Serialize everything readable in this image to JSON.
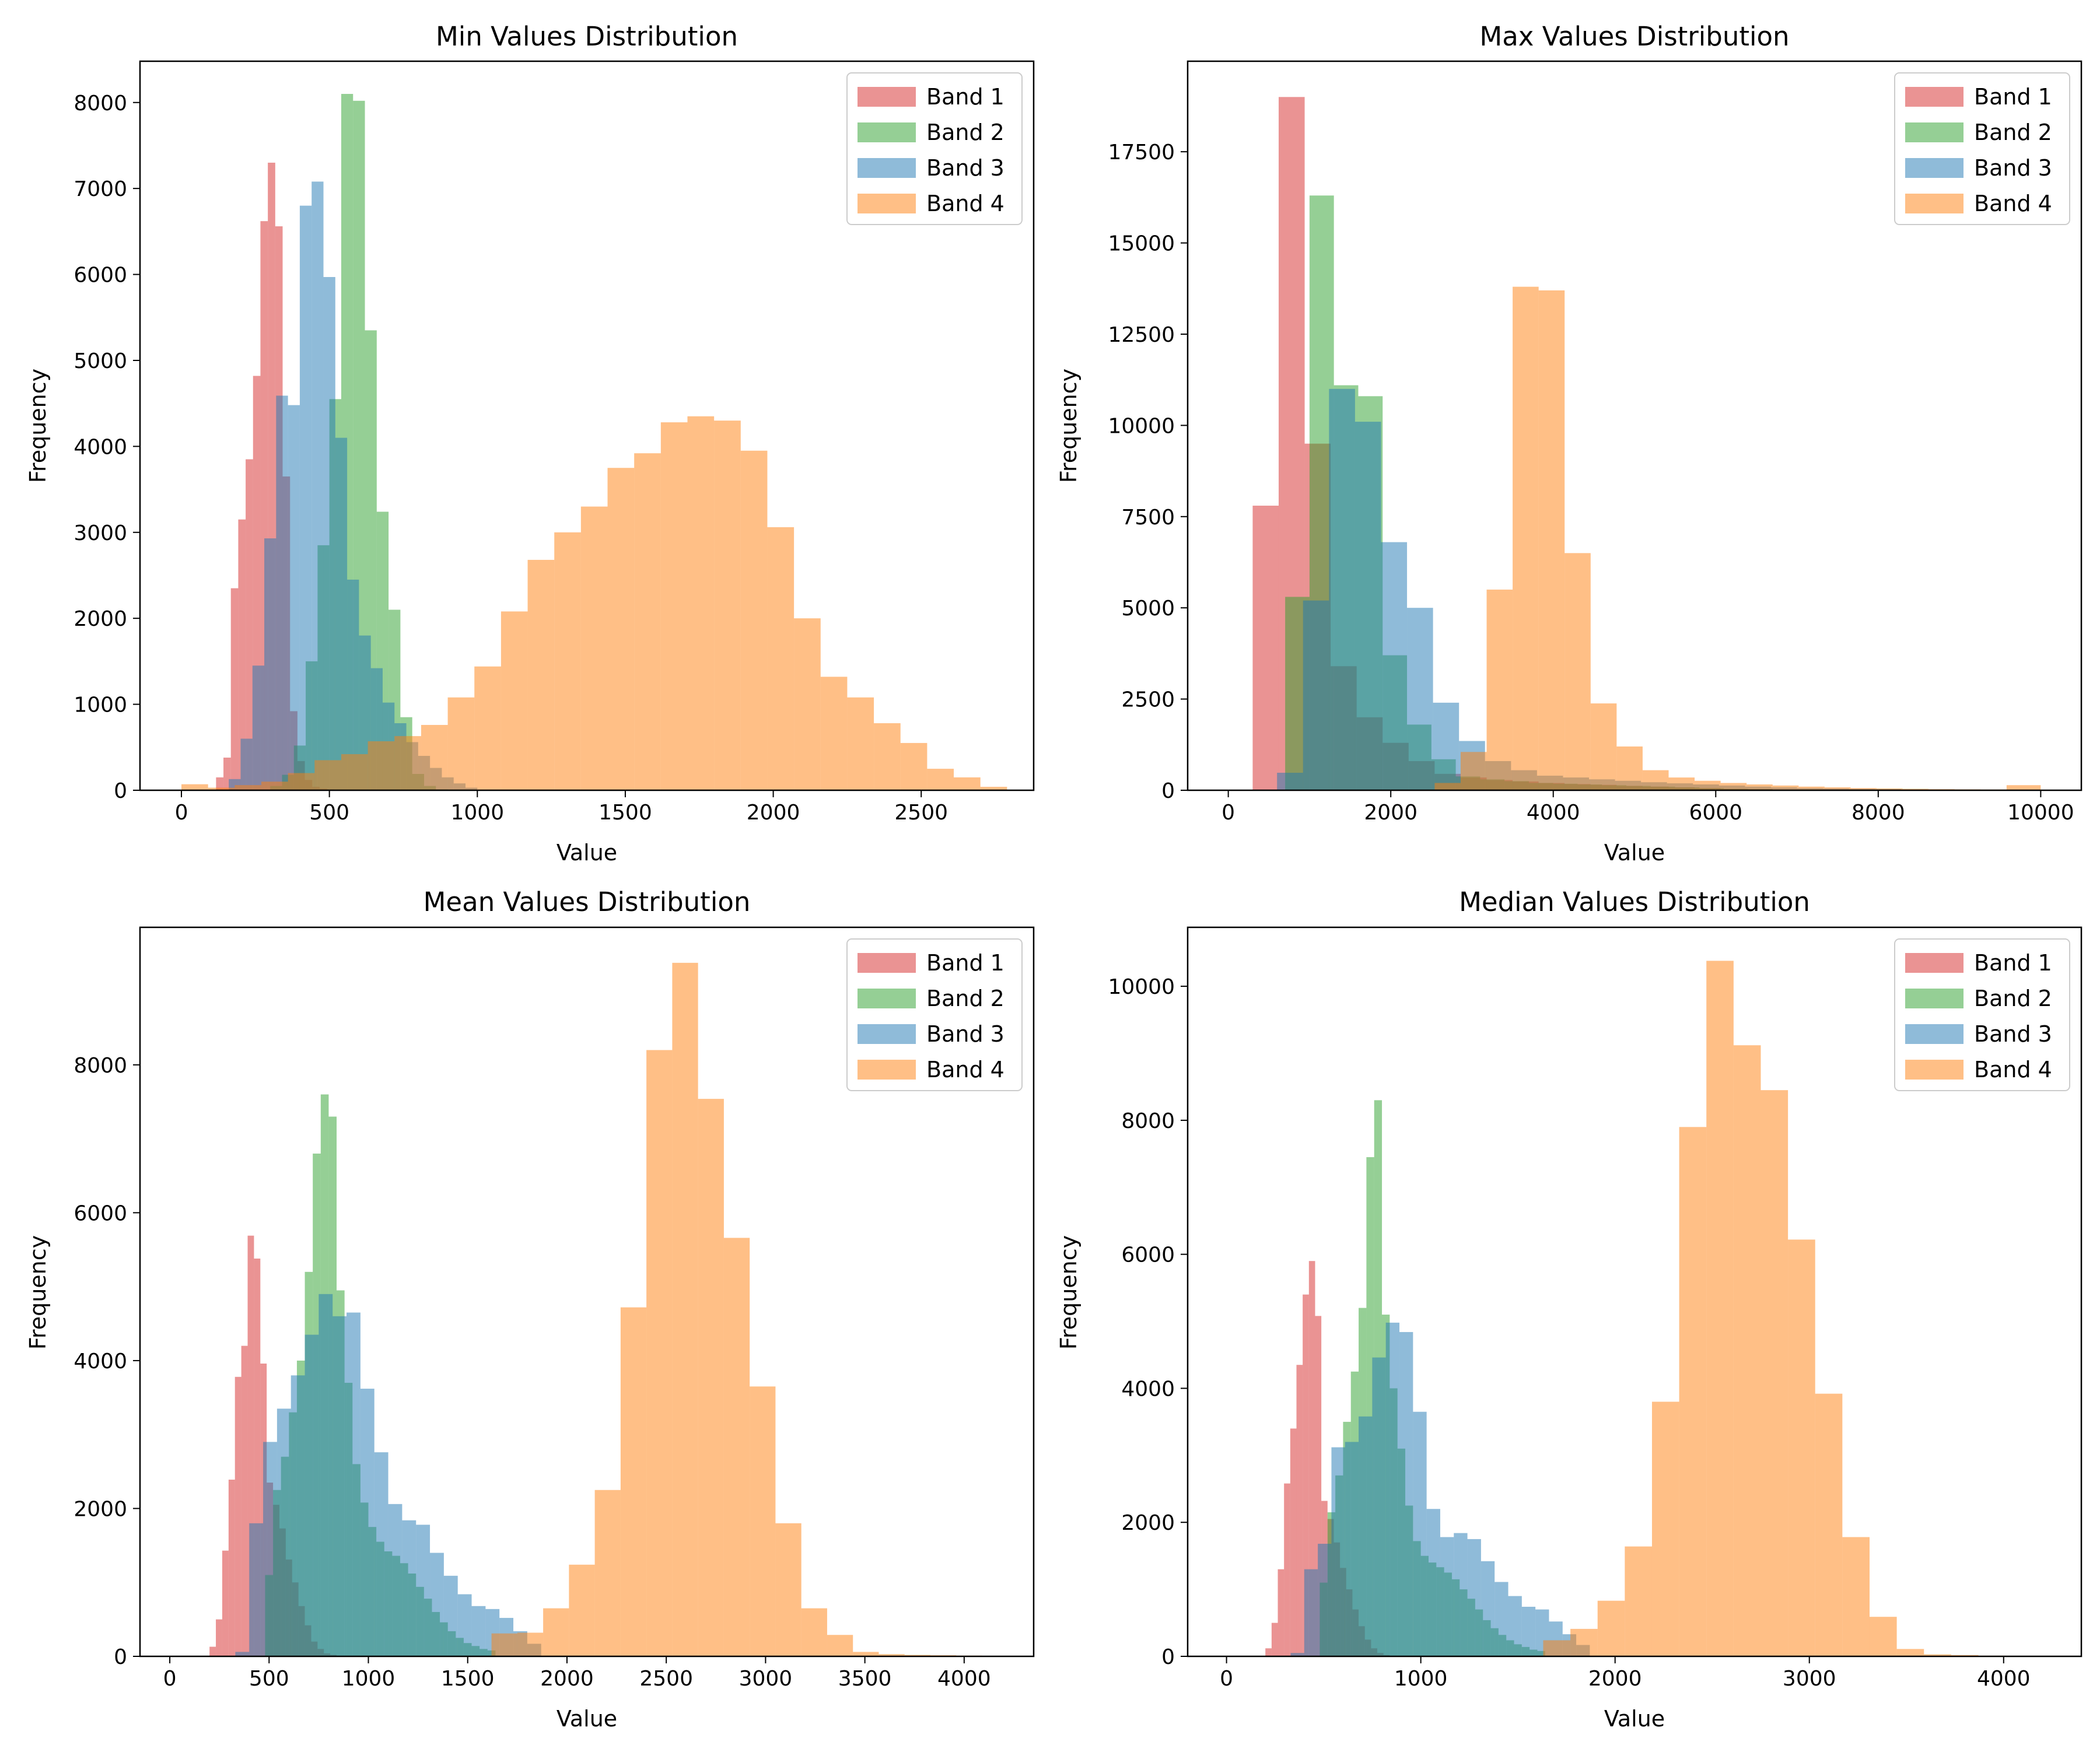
{
  "colors": {
    "band_1": "#d62728",
    "band_2": "#2ca02c",
    "band_3": "#1f77b4",
    "band_4": "#ff7f0e"
  },
  "chart_data": [
    {
      "type": "histogram",
      "title": "Min Values Distribution",
      "xlabel": "Value",
      "ylabel": "Frequency",
      "xlim": [
        -140,
        2880
      ],
      "ylim": [
        0,
        8480
      ],
      "xticks": [
        0,
        500,
        1000,
        1500,
        2000,
        2500
      ],
      "yticks": [
        0,
        1000,
        2000,
        3000,
        4000,
        5000,
        6000,
        7000,
        8000
      ],
      "legend": "top-right",
      "series": [
        {
          "name": "Band 1",
          "color_key": "band_1",
          "edges": [
            117,
            142,
            167,
            192,
            217,
            242,
            267,
            292,
            317,
            342,
            367,
            392,
            417,
            442,
            467,
            492,
            517
          ],
          "values": [
            150,
            380,
            2350,
            3150,
            3850,
            4820,
            6620,
            7300,
            6560,
            3650,
            920,
            340,
            120,
            40,
            20,
            10
          ]
        },
        {
          "name": "Band 2",
          "color_key": "band_2",
          "edges": [
            300,
            340,
            380,
            420,
            460,
            500,
            540,
            580,
            620,
            660,
            700,
            740,
            780,
            820,
            860,
            900
          ],
          "values": [
            50,
            180,
            520,
            1500,
            2850,
            4550,
            8100,
            8020,
            5350,
            3240,
            2100,
            850,
            190,
            50,
            10
          ]
        },
        {
          "name": "Band 3",
          "color_key": "band_3",
          "edges": [
            160,
            200,
            240,
            280,
            320,
            360,
            400,
            440,
            480,
            520,
            560,
            600,
            640,
            680,
            720,
            760,
            800,
            840,
            880,
            920,
            960,
            1000
          ],
          "values": [
            130,
            600,
            1450,
            2930,
            4590,
            4480,
            6800,
            7080,
            5970,
            4100,
            2450,
            1800,
            1420,
            1020,
            780,
            560,
            400,
            260,
            150,
            80,
            30
          ]
        },
        {
          "name": "Band 4",
          "color_key": "band_4",
          "edges": [
            0,
            90,
            180,
            270,
            360,
            450,
            540,
            630,
            720,
            810,
            900,
            990,
            1080,
            1170,
            1260,
            1350,
            1440,
            1530,
            1620,
            1710,
            1800,
            1890,
            1980,
            2070,
            2160,
            2250,
            2340,
            2430,
            2520,
            2610,
            2700,
            2790
          ],
          "values": [
            70,
            30,
            60,
            100,
            200,
            350,
            420,
            570,
            630,
            760,
            1080,
            1440,
            2080,
            2680,
            3000,
            3300,
            3750,
            3920,
            4280,
            4350,
            4300,
            3950,
            3060,
            2000,
            1320,
            1080,
            780,
            550,
            250,
            150,
            40
          ]
        }
      ]
    },
    {
      "type": "histogram",
      "title": "Max Values Distribution",
      "xlabel": "Value",
      "ylabel": "Frequency",
      "xlim": [
        -500,
        10500
      ],
      "ylim": [
        0,
        19980
      ],
      "xticks": [
        0,
        2000,
        4000,
        6000,
        8000,
        10000
      ],
      "yticks": [
        0,
        2500,
        5000,
        7500,
        10000,
        12500,
        15000,
        17500
      ],
      "legend": "top-right",
      "series": [
        {
          "name": "Band 1",
          "color_key": "band_1",
          "edges": [
            300,
            620,
            940,
            1260,
            1580,
            1900,
            2220,
            2540,
            2860,
            3180,
            3500,
            3820,
            4140,
            4460,
            4780,
            5100,
            5420,
            5740,
            6060,
            6380,
            6700
          ],
          "values": [
            7800,
            19000,
            9500,
            3400,
            2000,
            1300,
            800,
            450,
            350,
            280,
            240,
            200,
            170,
            150,
            120,
            100,
            80,
            60,
            40,
            30
          ]
        },
        {
          "name": "Band 2",
          "color_key": "band_2",
          "edges": [
            700,
            1000,
            1300,
            1600,
            1900,
            2200,
            2500,
            2800,
            3100,
            3400,
            3700,
            4000,
            4300,
            4600,
            4900,
            5200,
            5500,
            5800,
            6100,
            6400,
            6700
          ],
          "values": [
            5300,
            16300,
            11100,
            10800,
            3700,
            1800,
            850,
            380,
            300,
            250,
            200,
            180,
            160,
            140,
            120,
            100,
            80,
            60,
            40,
            30
          ]
        },
        {
          "name": "Band 3",
          "color_key": "band_3",
          "edges": [
            600,
            920,
            1240,
            1560,
            1880,
            2200,
            2520,
            2840,
            3160,
            3480,
            3800,
            4120,
            4440,
            4760,
            5080,
            5400,
            5720,
            6040,
            6360,
            6680,
            7000,
            7320,
            7640,
            7960,
            8280,
            8600,
            8920,
            9240
          ],
          "values": [
            480,
            5200,
            11000,
            10100,
            6800,
            5000,
            2400,
            1350,
            800,
            550,
            400,
            350,
            300,
            260,
            220,
            190,
            160,
            130,
            100,
            80,
            60,
            50,
            40,
            30,
            20,
            15,
            10
          ]
        },
        {
          "name": "Band 4",
          "color_key": "band_4",
          "edges": [
            2540,
            2860,
            3180,
            3500,
            3820,
            4140,
            4460,
            4780,
            5100,
            5420,
            5740,
            6060,
            6380,
            6700,
            7020,
            7340,
            7660,
            7980,
            8300,
            8620,
            8940,
            9260,
            9580,
            10000
          ],
          "values": [
            200,
            1050,
            5500,
            13800,
            13700,
            6500,
            2380,
            1200,
            550,
            350,
            260,
            200,
            160,
            130,
            100,
            80,
            60,
            50,
            40,
            30,
            25,
            20,
            140
          ]
        }
      ]
    },
    {
      "type": "histogram",
      "title": "Mean Values Distribution",
      "xlabel": "Value",
      "ylabel": "Frequency",
      "xlim": [
        -150,
        4350
      ],
      "ylim": [
        0,
        9860
      ],
      "xticks": [
        0,
        500,
        1000,
        1500,
        2000,
        2500,
        3000,
        3500,
        4000
      ],
      "yticks": [
        0,
        2000,
        4000,
        6000,
        8000
      ],
      "legend": "top-right",
      "series": [
        {
          "name": "Band 1",
          "color_key": "band_1",
          "edges": [
            200,
            232,
            264,
            296,
            328,
            360,
            392,
            424,
            456,
            488,
            520,
            552,
            584,
            616,
            648,
            680,
            712,
            744,
            776,
            808,
            840
          ],
          "values": [
            130,
            500,
            1430,
            2390,
            3780,
            4200,
            5690,
            5380,
            3960,
            2350,
            2050,
            1730,
            1310,
            1000,
            680,
            420,
            200,
            100,
            40,
            20
          ]
        },
        {
          "name": "Band 2",
          "color_key": "band_2",
          "edges": [
            480,
            520,
            560,
            600,
            640,
            680,
            720,
            760,
            800,
            840,
            880,
            920,
            960,
            1000,
            1040,
            1080,
            1120,
            1160,
            1200,
            1240,
            1280,
            1320,
            1360,
            1400,
            1440,
            1480,
            1520,
            1560,
            1600,
            1640
          ],
          "values": [
            1100,
            2250,
            2700,
            3300,
            4000,
            5200,
            6800,
            7600,
            7300,
            4950,
            3700,
            2600,
            2080,
            1750,
            1550,
            1420,
            1360,
            1260,
            1120,
            940,
            780,
            600,
            460,
            340,
            250,
            180,
            140,
            100,
            80
          ]
        },
        {
          "name": "Band 3",
          "color_key": "band_3",
          "edges": [
            330,
            400,
            470,
            540,
            610,
            680,
            750,
            820,
            890,
            960,
            1030,
            1100,
            1170,
            1240,
            1310,
            1380,
            1450,
            1520,
            1590,
            1660,
            1730,
            1800,
            1870
          ],
          "values": [
            60,
            1800,
            2900,
            3350,
            3800,
            4350,
            4900,
            4600,
            4650,
            3620,
            2760,
            2060,
            1840,
            1780,
            1400,
            1090,
            840,
            680,
            640,
            520,
            340,
            170
          ]
        },
        {
          "name": "Band 4",
          "color_key": "band_4",
          "edges": [
            1620,
            1750,
            1880,
            2010,
            2140,
            2270,
            2400,
            2530,
            2660,
            2790,
            2920,
            3050,
            3180,
            3310,
            3440,
            3570,
            3700,
            3830,
            3960,
            4090,
            4220
          ],
          "values": [
            310,
            320,
            650,
            1240,
            2250,
            4720,
            8200,
            9380,
            7540,
            5660,
            3650,
            1800,
            650,
            290,
            60,
            30,
            20,
            15,
            10,
            5
          ]
        }
      ]
    },
    {
      "type": "histogram",
      "title": "Median Values Distribution",
      "xlabel": "Value",
      "ylabel": "Frequency",
      "xlim": [
        -200,
        4400
      ],
      "ylim": [
        0,
        10880
      ],
      "xticks": [
        0,
        1000,
        2000,
        3000,
        4000
      ],
      "yticks": [
        0,
        2000,
        4000,
        6000,
        8000,
        10000
      ],
      "legend": "top-right",
      "series": [
        {
          "name": "Band 1",
          "color_key": "band_1",
          "edges": [
            200,
            232,
            264,
            296,
            328,
            360,
            392,
            424,
            456,
            488,
            520,
            552,
            584,
            616,
            648,
            680,
            712,
            744,
            776,
            808,
            840
          ],
          "values": [
            120,
            500,
            1300,
            2580,
            3400,
            4350,
            5400,
            5900,
            5080,
            2320,
            2050,
            1700,
            1320,
            1000,
            700,
            450,
            250,
            120,
            50,
            20
          ]
        },
        {
          "name": "Band 2",
          "color_key": "band_2",
          "edges": [
            480,
            520,
            560,
            600,
            640,
            680,
            720,
            760,
            800,
            840,
            880,
            920,
            960,
            1000,
            1040,
            1080,
            1120,
            1160,
            1200,
            1240,
            1280,
            1320,
            1360,
            1400,
            1440,
            1480,
            1520,
            1560,
            1600,
            1640
          ],
          "values": [
            1100,
            2150,
            2700,
            3500,
            4250,
            5200,
            7450,
            8300,
            5100,
            4000,
            3100,
            2250,
            1720,
            1500,
            1400,
            1330,
            1250,
            1150,
            1000,
            860,
            700,
            540,
            420,
            320,
            240,
            180,
            140,
            100,
            80
          ]
        },
        {
          "name": "Band 3",
          "color_key": "band_3",
          "edges": [
            330,
            400,
            470,
            540,
            610,
            680,
            750,
            820,
            890,
            960,
            1030,
            1100,
            1170,
            1240,
            1310,
            1380,
            1450,
            1520,
            1590,
            1660,
            1730,
            1800,
            1870
          ],
          "values": [
            50,
            1300,
            1680,
            3120,
            3200,
            3580,
            4460,
            4980,
            4840,
            3650,
            2200,
            1780,
            1840,
            1750,
            1420,
            1110,
            900,
            740,
            700,
            520,
            330,
            170
          ]
        },
        {
          "name": "Band 4",
          "color_key": "band_4",
          "edges": [
            1630,
            1770,
            1910,
            2050,
            2190,
            2330,
            2470,
            2610,
            2750,
            2890,
            3030,
            3170,
            3310,
            3450,
            3590,
            3730,
            3870,
            4010,
            4150
          ],
          "values": [
            240,
            410,
            830,
            1640,
            3800,
            7900,
            10380,
            9120,
            8450,
            6220,
            3920,
            1780,
            590,
            110,
            30,
            20,
            10,
            5
          ]
        }
      ]
    }
  ]
}
